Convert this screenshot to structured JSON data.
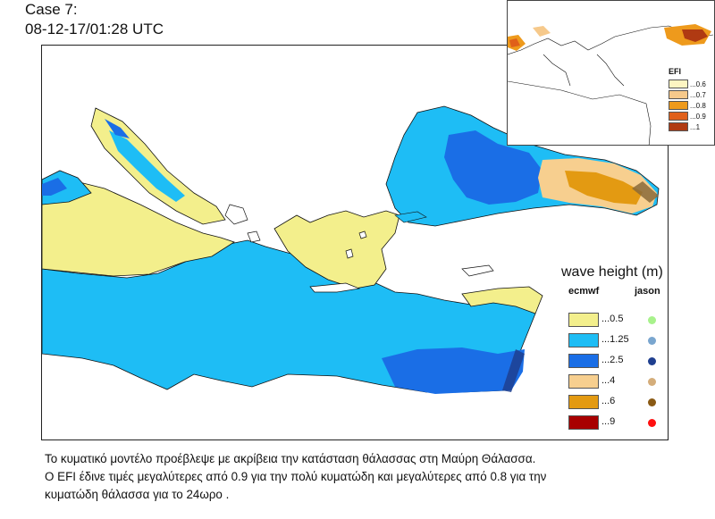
{
  "header": {
    "case_label": "Case 7:",
    "datetime": "08-12-17/01:28 UTC"
  },
  "colors": {
    "land": "#ffffff",
    "coast": "#111111",
    "wave_0_5": "#f3ef8c",
    "wave_1_25": "#1ebdf5",
    "wave_2_5": "#1a6ee6",
    "wave_4": "#f7cf8f",
    "wave_6": "#e39a12",
    "wave_9": "#a80000"
  },
  "legend": {
    "title": "wave height (m)",
    "col_model": "ecmwf",
    "col_satellite": "jason",
    "items": [
      {
        "label": "...0.5",
        "swatch": "#f3ef8c",
        "dot": "#a8f28c"
      },
      {
        "label": "...1.25",
        "swatch": "#1ebdf5",
        "dot": "#7aa6cf"
      },
      {
        "label": "...2.5",
        "swatch": "#1a6ee6",
        "dot": "#1f3f8f"
      },
      {
        "label": "...4",
        "swatch": "#f7cf8f",
        "dot": "#d4ad7a"
      },
      {
        "label": "...6",
        "swatch": "#e39a12",
        "dot": "#8a5a14"
      },
      {
        "label": "...9",
        "swatch": "#a80000",
        "dot": "#ff1010"
      }
    ]
  },
  "inset": {
    "legend_title": "EFI",
    "items": [
      {
        "label": "...0.6",
        "swatch": "#fdf5c2"
      },
      {
        "label": "...0.7",
        "swatch": "#f6c98b"
      },
      {
        "label": "...0.8",
        "swatch": "#ee9a1c"
      },
      {
        "label": "...0.9",
        "swatch": "#e0601a"
      },
      {
        "label": "...1",
        "swatch": "#b03a12"
      }
    ]
  },
  "caption": {
    "line1": "Το κυματικό μοντέλο προέβλεψε με ακρίβεια την κατάσταση θάλασσας στη Μαύρη Θάλασσα.",
    "line2": "Ο EFI έδινε τιμές μεγαλύτερες από 0.9 για την πολύ κυματώδη και μεγαλύτερες από 0.8 για την",
    "line3": "κυματώδη θάλασσα για το 24ωρο ."
  }
}
